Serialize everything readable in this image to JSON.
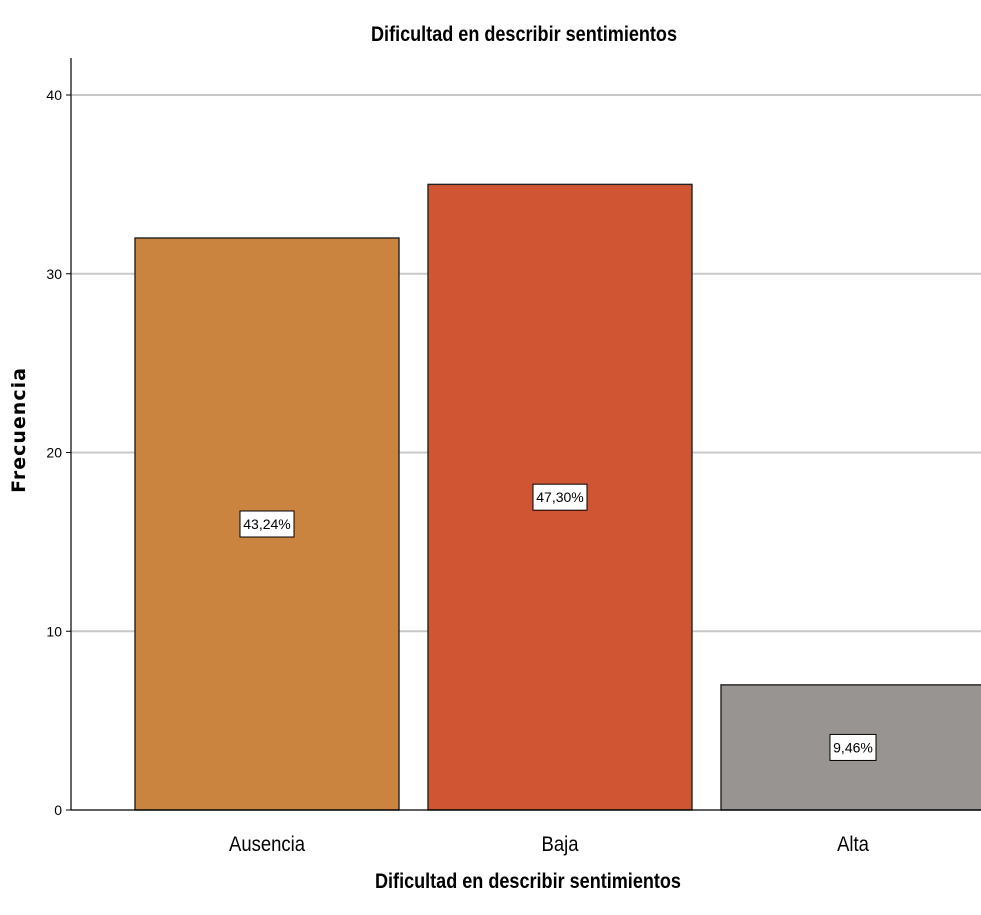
{
  "chart_data": {
    "type": "bar",
    "title": "Dificultad en describir sentimientos",
    "xlabel": "Dificultad en describir sentimientos",
    "ylabel": "Frecuencia",
    "categories": [
      "Ausencia",
      "Baja",
      "Alta"
    ],
    "values": [
      32,
      35,
      7
    ],
    "data_labels": [
      "43,24%",
      "47,30%",
      "9,46%"
    ],
    "colors": [
      "#cb843f",
      "#d05533",
      "#989492"
    ],
    "ylim": [
      0,
      42
    ],
    "yticks": [
      0,
      10,
      20,
      30,
      40
    ],
    "grid": true,
    "legend": "none"
  }
}
